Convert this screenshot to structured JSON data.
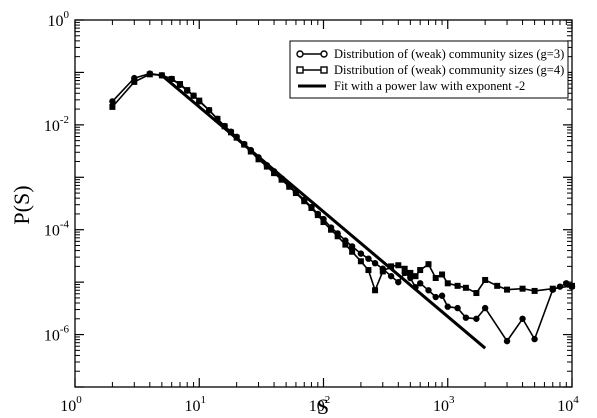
{
  "chart_data": {
    "type": "line",
    "xlabel": "S",
    "ylabel": "P(S)",
    "xscale": "log",
    "yscale": "log",
    "xlim": [
      1,
      10000
    ],
    "ylim": [
      1e-07,
      1
    ],
    "x_ticks": [
      {
        "base": "10",
        "exp": "0"
      },
      {
        "base": "10",
        "exp": "1"
      },
      {
        "base": "10",
        "exp": "2"
      },
      {
        "base": "10",
        "exp": "3"
      },
      {
        "base": "10",
        "exp": "4"
      }
    ],
    "y_ticks": [
      {
        "base": "10",
        "exp": "-6"
      },
      {
        "base": "10",
        "exp": "-4"
      },
      {
        "base": "10",
        "exp": "-2"
      },
      {
        "base": "10",
        "exp": "0"
      }
    ],
    "legend_position": "top-right",
    "series": [
      {
        "name": "Distribution of (weak) community sizes (g=3)",
        "marker": "circle",
        "points": [
          [
            2,
            0.028
          ],
          [
            3,
            0.078
          ],
          [
            4,
            0.095
          ],
          [
            5,
            0.088
          ],
          [
            6,
            0.075
          ],
          [
            7,
            0.058
          ],
          [
            8,
            0.045
          ],
          [
            9,
            0.036
          ],
          [
            10,
            0.028
          ],
          [
            12,
            0.019
          ],
          [
            14,
            0.013
          ],
          [
            16,
            0.0095
          ],
          [
            18,
            0.0074
          ],
          [
            20,
            0.0059
          ],
          [
            23,
            0.0043
          ],
          [
            26,
            0.0033
          ],
          [
            30,
            0.0024
          ],
          [
            35,
            0.0017
          ],
          [
            40,
            0.0013
          ],
          [
            46,
            0.00095
          ],
          [
            53,
            0.0007
          ],
          [
            60,
            0.00052
          ],
          [
            70,
            0.00037
          ],
          [
            80,
            0.00027
          ],
          [
            90,
            0.0002
          ],
          [
            100,
            0.00016
          ],
          [
            115,
            0.00011
          ],
          [
            130,
            8.5e-05
          ],
          [
            150,
            6.2e-05
          ],
          [
            170,
            4.8e-05
          ],
          [
            200,
            3.5e-05
          ],
          [
            230,
            2.8e-05
          ],
          [
            260,
            2.3e-05
          ],
          [
            300,
            1.8e-05
          ],
          [
            350,
            1.3e-05
          ],
          [
            400,
            1e-05
          ],
          [
            450,
            1.5e-05
          ],
          [
            500,
            1.2e-05
          ],
          [
            550,
            8e-06
          ],
          [
            600,
            9.5e-06
          ],
          [
            700,
            7e-06
          ],
          [
            800,
            5.2e-06
          ],
          [
            900,
            5.5e-06
          ],
          [
            1000,
            3.4e-06
          ],
          [
            1200,
            3.2e-06
          ],
          [
            1400,
            2.1e-06
          ],
          [
            1700,
            2e-06
          ],
          [
            2000,
            3.2e-06
          ],
          [
            3000,
            7.5e-07
          ],
          [
            4000,
            2e-06
          ],
          [
            5000,
            8.2e-07
          ],
          [
            7000,
            7.2e-06
          ],
          [
            8000,
            8.2e-06
          ],
          [
            9000,
            9.5e-06
          ],
          [
            10000,
            8.2e-06
          ]
        ]
      },
      {
        "name": "Distribution of (weak) community sizes (g=4)",
        "marker": "square",
        "points": [
          [
            2,
            0.022
          ],
          [
            3,
            0.066
          ],
          [
            4,
            0.092
          ],
          [
            5,
            0.088
          ],
          [
            6,
            0.075
          ],
          [
            7,
            0.06
          ],
          [
            8,
            0.046
          ],
          [
            9,
            0.036
          ],
          [
            10,
            0.029
          ],
          [
            12,
            0.019
          ],
          [
            14,
            0.013
          ],
          [
            16,
            0.0094
          ],
          [
            18,
            0.0072
          ],
          [
            20,
            0.0057
          ],
          [
            23,
            0.0042
          ],
          [
            26,
            0.0031
          ],
          [
            30,
            0.0022
          ],
          [
            35,
            0.0016
          ],
          [
            40,
            0.0012
          ],
          [
            46,
            0.0009
          ],
          [
            53,
            0.00066
          ],
          [
            60,
            0.0005
          ],
          [
            70,
            0.00035
          ],
          [
            80,
            0.00026
          ],
          [
            90,
            0.00019
          ],
          [
            100,
            0.00014
          ],
          [
            115,
            0.0001
          ],
          [
            130,
            7.5e-05
          ],
          [
            150,
            5.2e-05
          ],
          [
            170,
            3.8e-05
          ],
          [
            200,
            2.5e-05
          ],
          [
            230,
            1.7e-05
          ],
          [
            260,
            7e-06
          ],
          [
            300,
            1.6e-05
          ],
          [
            350,
            2e-05
          ],
          [
            400,
            2.1e-05
          ],
          [
            450,
            1.8e-05
          ],
          [
            500,
            1.5e-05
          ],
          [
            550,
            1.3e-05
          ],
          [
            600,
            1.7e-05
          ],
          [
            700,
            2.2e-05
          ],
          [
            800,
            1.2e-05
          ],
          [
            900,
            1.4e-05
          ],
          [
            1000,
            9.5e-06
          ],
          [
            1200,
            8.5e-06
          ],
          [
            1400,
            7.8e-06
          ],
          [
            1700,
            6.2e-06
          ],
          [
            2000,
            1.1e-05
          ],
          [
            2500,
            8.5e-06
          ],
          [
            3000,
            7.2e-06
          ],
          [
            4000,
            7.5e-06
          ],
          [
            5000,
            6.8e-06
          ],
          [
            7000,
            7.5e-06
          ],
          [
            10000,
            8.5e-06
          ]
        ]
      },
      {
        "name": "Fit with a power law with exponent -2",
        "marker": "none",
        "points": [
          [
            5,
            0.088
          ],
          [
            2000,
            5.5e-07
          ]
        ]
      }
    ]
  }
}
